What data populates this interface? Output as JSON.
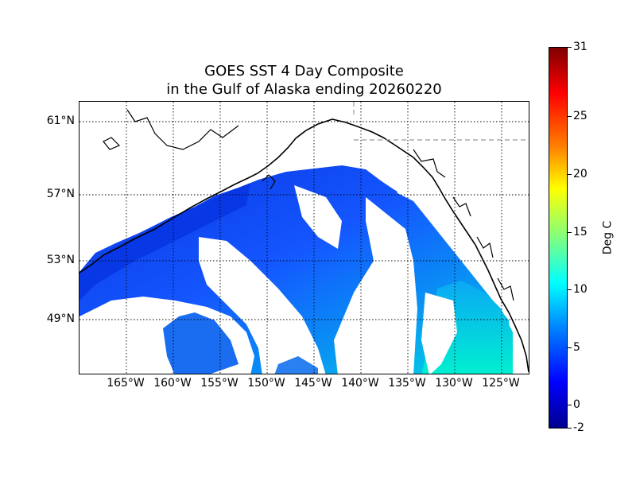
{
  "title": {
    "line1": "GOES SST 4 Day Composite",
    "line2": "in the Gulf of Alaska ending 20260220"
  },
  "map": {
    "lat_range_deg_N": [
      45.5,
      62.5
    ],
    "lon_range_deg": [
      -170.0,
      -122.0
    ],
    "lat_labels": [
      "61°N",
      "57°N",
      "53°N",
      "49°N"
    ],
    "lon_labels": [
      "165°W",
      "160°W",
      "155°W",
      "150°W",
      "145°W",
      "140°W",
      "135°W",
      "130°W",
      "125°W"
    ],
    "grid": "dotted",
    "features": [
      "coastline",
      "international-border"
    ],
    "clouds_masked": true
  },
  "colorbar": {
    "unit_label": "Deg C",
    "min": -2,
    "max": 31,
    "tick_labels": [
      "-2",
      "0",
      "5",
      "10",
      "15",
      "20",
      "25",
      "31"
    ],
    "colormap": "jet"
  },
  "colors": {
    "open_ocean_offshore": "#1a4dff",
    "coastal_north": "#0a3ae8",
    "southeast_warm": "#00c8f0",
    "cloud_mask": "#ffffff",
    "coastline": "#000000",
    "border": "#999999"
  }
}
